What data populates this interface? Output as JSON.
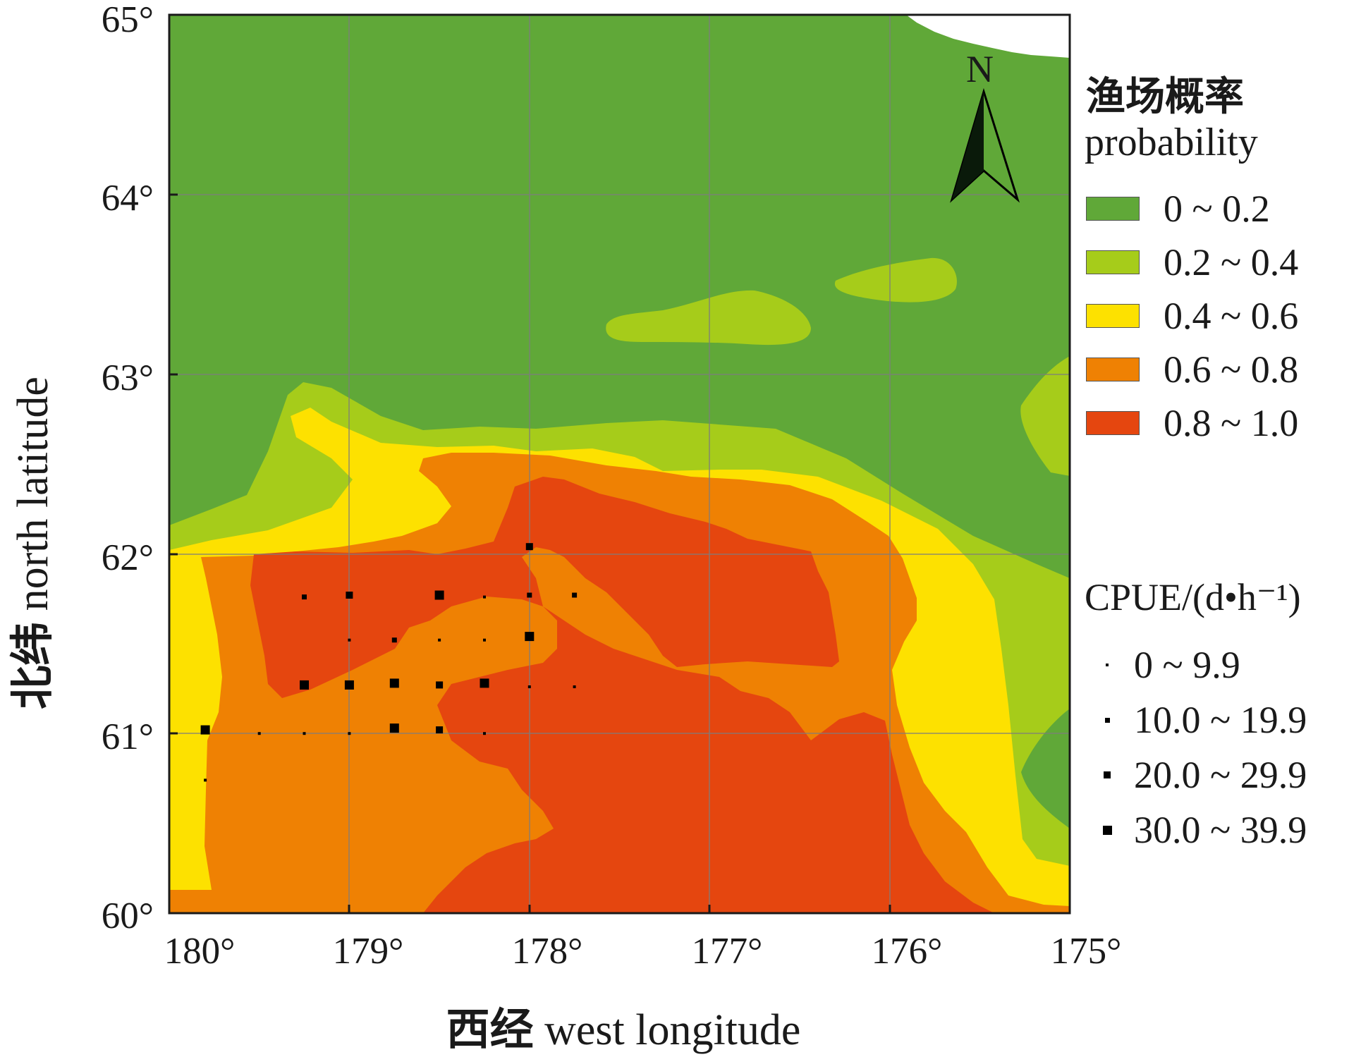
{
  "axes": {
    "x_label": "西经 west longitude",
    "x_label_cn": "西经",
    "x_label_en": "west longitude",
    "y_label_cn": "北纬",
    "y_label_en": "north latitude",
    "x_ticks": [
      "180°",
      "179°",
      "178°",
      "177°",
      "176°",
      "175°"
    ],
    "y_ticks": [
      "65°",
      "64°",
      "63°",
      "62°",
      "61°",
      "60°"
    ],
    "x_range_west_longitude": [
      180,
      175
    ],
    "y_range_north_latitude": [
      60,
      65
    ],
    "grid": true
  },
  "north_arrow": {
    "label": "N"
  },
  "legend": {
    "title_cn": "渔场概率",
    "title_en": "probability",
    "items": [
      {
        "label": "0 ~ 0.2",
        "color": "#60a838"
      },
      {
        "label": "0.2 ~ 0.4",
        "color": "#a6cc1a"
      },
      {
        "label": "0.4 ~ 0.6",
        "color": "#fde100"
      },
      {
        "label": "0.6 ~ 0.8",
        "color": "#ef8103"
      },
      {
        "label": "0.8 ~ 1.0",
        "color": "#e5460f"
      }
    ]
  },
  "cpue_legend": {
    "title": "CPUE/(d•h⁻¹)",
    "items": [
      {
        "label": "0 ~ 9.9",
        "dot_level": 1
      },
      {
        "label": "10.0 ~ 19.9",
        "dot_level": 2
      },
      {
        "label": "20.0 ~ 29.9",
        "dot_level": 3
      },
      {
        "label": "30.0 ~ 39.9",
        "dot_level": 4
      }
    ]
  },
  "chart_data": {
    "type": "heatmap",
    "title": "",
    "xlabel": "西经 west longitude",
    "ylabel": "北纬 north latitude",
    "xlim": [
      180,
      175
    ],
    "ylim": [
      60,
      65
    ],
    "probability_classes": [
      "0 ~ 0.2",
      "0.2 ~ 0.4",
      "0.4 ~ 0.6",
      "0.6 ~ 0.8",
      "0.8 ~ 1.0"
    ],
    "cpue_points": [
      {
        "lon": 179.8,
        "lat": 61.02,
        "cpue_class": "30.0 ~ 39.9"
      },
      {
        "lon": 179.8,
        "lat": 60.74,
        "cpue_class": "0 ~ 9.9"
      },
      {
        "lon": 179.5,
        "lat": 61.0,
        "cpue_class": "0 ~ 9.9"
      },
      {
        "lon": 179.25,
        "lat": 61.0,
        "cpue_class": "0 ~ 9.9"
      },
      {
        "lon": 179.0,
        "lat": 61.0,
        "cpue_class": "0 ~ 9.9"
      },
      {
        "lon": 178.75,
        "lat": 61.03,
        "cpue_class": "30.0 ~ 39.9"
      },
      {
        "lon": 178.5,
        "lat": 61.02,
        "cpue_class": "20.0 ~ 29.9"
      },
      {
        "lon": 178.25,
        "lat": 61.0,
        "cpue_class": "0 ~ 9.9"
      },
      {
        "lon": 179.25,
        "lat": 61.27,
        "cpue_class": "30.0 ~ 39.9"
      },
      {
        "lon": 179.0,
        "lat": 61.27,
        "cpue_class": "30.0 ~ 39.9"
      },
      {
        "lon": 178.75,
        "lat": 61.28,
        "cpue_class": "30.0 ~ 39.9"
      },
      {
        "lon": 178.5,
        "lat": 61.27,
        "cpue_class": "20.0 ~ 29.9"
      },
      {
        "lon": 178.25,
        "lat": 61.28,
        "cpue_class": "30.0 ~ 39.9"
      },
      {
        "lon": 178.0,
        "lat": 61.26,
        "cpue_class": "0 ~ 9.9"
      },
      {
        "lon": 177.75,
        "lat": 61.26,
        "cpue_class": "0 ~ 9.9"
      },
      {
        "lon": 179.0,
        "lat": 61.52,
        "cpue_class": "0 ~ 9.9"
      },
      {
        "lon": 178.75,
        "lat": 61.52,
        "cpue_class": "10.0 ~ 19.9"
      },
      {
        "lon": 178.5,
        "lat": 61.52,
        "cpue_class": "0 ~ 9.9"
      },
      {
        "lon": 178.25,
        "lat": 61.52,
        "cpue_class": "0 ~ 9.9"
      },
      {
        "lon": 178.0,
        "lat": 61.54,
        "cpue_class": "30.0 ~ 39.9"
      },
      {
        "lon": 179.25,
        "lat": 61.76,
        "cpue_class": "10.0 ~ 19.9"
      },
      {
        "lon": 179.0,
        "lat": 61.77,
        "cpue_class": "20.0 ~ 29.9"
      },
      {
        "lon": 178.5,
        "lat": 61.77,
        "cpue_class": "30.0 ~ 39.9"
      },
      {
        "lon": 178.25,
        "lat": 61.76,
        "cpue_class": "0 ~ 9.9"
      },
      {
        "lon": 178.0,
        "lat": 61.77,
        "cpue_class": "10.0 ~ 19.9"
      },
      {
        "lon": 177.75,
        "lat": 61.77,
        "cpue_class": "10.0 ~ 19.9"
      },
      {
        "lon": 178.0,
        "lat": 62.04,
        "cpue_class": "20.0 ~ 29.9"
      }
    ]
  }
}
